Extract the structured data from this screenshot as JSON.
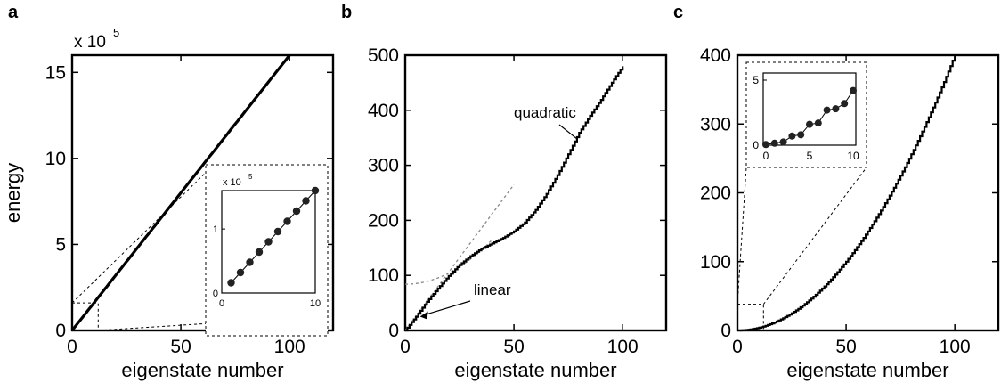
{
  "chart_data": [
    {
      "type": "scatter",
      "panel_label": "a",
      "xlabel": "eigenstate number",
      "ylabel": "energy",
      "exponent_label": "x 10",
      "exponent_power": "5",
      "xlim": [
        0,
        120
      ],
      "ylim": [
        0,
        16
      ],
      "xticks": [
        "0",
        "50",
        "100"
      ],
      "yticks": [
        "0",
        "5",
        "10",
        "15"
      ],
      "series": [
        {
          "x_start": 0,
          "x_end": 100,
          "y_start": 0,
          "y_end": 16
        }
      ],
      "inset": {
        "exponent_label": "x 10",
        "exponent_power": "5",
        "xlim": [
          0,
          10
        ],
        "ylim": [
          0,
          1.6
        ],
        "xticks": [
          "0",
          "10"
        ],
        "yticks": [
          "0",
          "1"
        ],
        "points_x": [
          1,
          2,
          3,
          4,
          5,
          6,
          7,
          8,
          9,
          10
        ],
        "points_y": [
          0.16,
          0.32,
          0.48,
          0.64,
          0.8,
          0.96,
          1.12,
          1.28,
          1.44,
          1.6
        ]
      }
    },
    {
      "type": "line",
      "panel_label": "b",
      "xlabel": "eigenstate number",
      "ylabel": "",
      "xlim": [
        0,
        120
      ],
      "ylim": [
        0,
        500
      ],
      "xticks": [
        "0",
        "50",
        "100"
      ],
      "yticks": [
        "0",
        "100",
        "200",
        "300",
        "400",
        "500"
      ],
      "annotations": [
        "quadratic",
        "linear"
      ],
      "series": [
        {
          "x": [
            0,
            5,
            10,
            15,
            20,
            25,
            30,
            35,
            40,
            42,
            45,
            50,
            55,
            60,
            65,
            70,
            75,
            80,
            85,
            90,
            95,
            100
          ],
          "y": [
            0,
            25,
            52,
            76,
            99,
            119,
            135,
            148,
            158,
            162,
            168,
            180,
            196,
            219,
            248,
            282,
            320,
            359,
            390,
            419,
            450,
            480
          ]
        }
      ],
      "guides": {
        "linear_slope": 5.3,
        "linear_x_range": [
          0,
          50
        ],
        "quadratic_coeffs": [
          84,
          0,
          0.0505
        ],
        "quadratic_x_range": [
          0,
          40
        ]
      }
    },
    {
      "type": "line",
      "panel_label": "c",
      "xlabel": "eigenstate number",
      "ylabel": "",
      "xlim": [
        0,
        120
      ],
      "ylim": [
        0,
        400
      ],
      "xticks": [
        "0",
        "50",
        "100"
      ],
      "yticks": [
        "0",
        "100",
        "200",
        "300",
        "400"
      ],
      "series": [
        {
          "quadratic_coeff": 0.04,
          "x_range": [
            0,
            100
          ]
        }
      ],
      "zoom_box": {
        "x": [
          0,
          12
        ],
        "y": [
          0,
          38
        ]
      },
      "inset": {
        "xlim": [
          0,
          10
        ],
        "ylim": [
          0,
          5
        ],
        "xticks": [
          "0",
          "5",
          "10"
        ],
        "yticks": [
          "0",
          "5"
        ],
        "points_x": [
          0,
          1,
          2,
          3,
          4,
          5,
          6,
          7,
          8,
          9,
          10
        ],
        "points_y": [
          0.05,
          0.15,
          0.25,
          0.7,
          0.8,
          1.6,
          1.7,
          2.7,
          2.8,
          3.2,
          4.2
        ]
      }
    }
  ]
}
